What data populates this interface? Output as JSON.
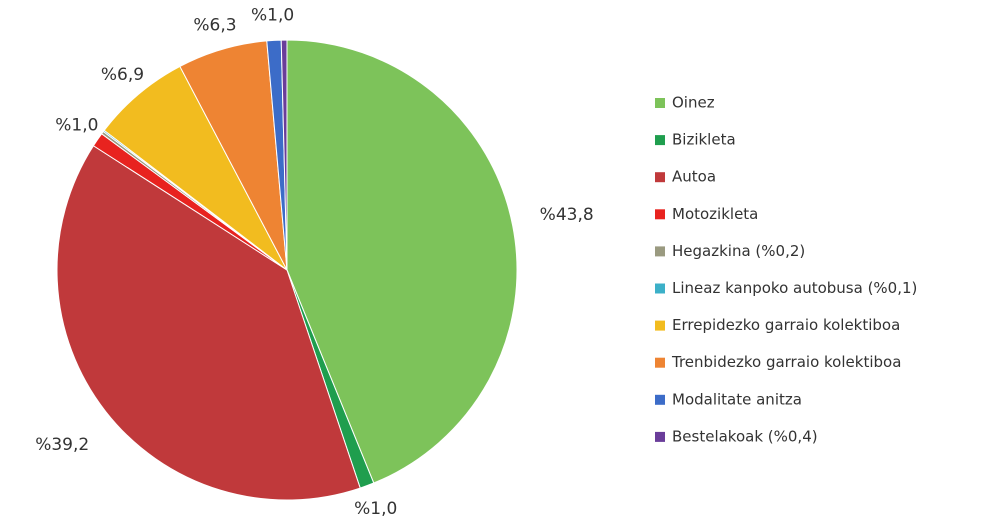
{
  "chart_data": {
    "type": "pie",
    "categories": [
      "Oinez",
      "Bizikleta",
      "Autoa",
      "Motozikleta",
      "Hegazkina (%0,2)",
      "Lineaz kanpoko autobusa (%0,1)",
      "Errepidezko garraio kolektiboa",
      "Trenbidezko garraio kolektiboa",
      "Modalitate anitza",
      "Bestelakoak (%0,4)"
    ],
    "values": [
      43.8,
      1.0,
      39.2,
      1.0,
      0.2,
      0.1,
      6.9,
      6.3,
      1.0,
      0.4
    ],
    "value_labels": [
      "%43,8",
      "%1,0",
      "%39,2",
      "%1,0",
      null,
      null,
      "%6,9",
      "%6,3",
      "%1,0",
      null
    ],
    "colors": [
      "#7dc35a",
      "#1f9e4e",
      "#c0393b",
      "#e8231f",
      "#9a9a80",
      "#3cb0c8",
      "#f2bc1f",
      "#ee8433",
      "#3c6cc8",
      "#6a3d9a"
    ],
    "legend": "right"
  }
}
